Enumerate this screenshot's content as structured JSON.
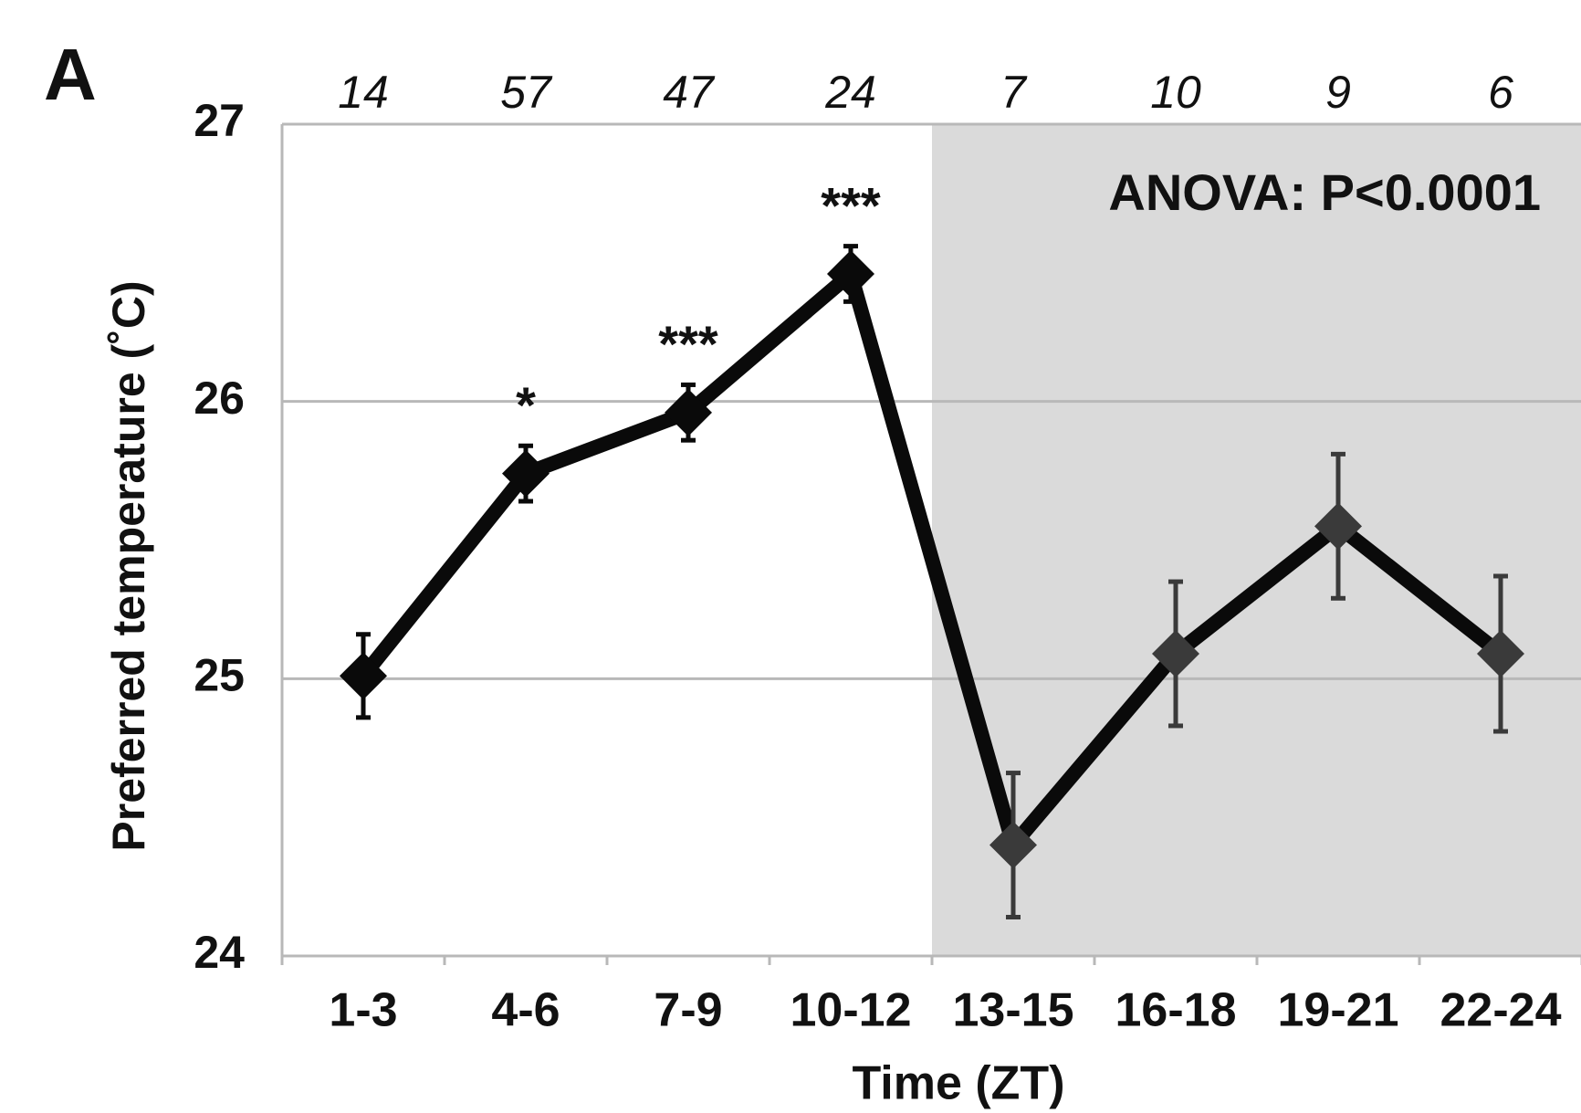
{
  "chart_data": {
    "type": "line",
    "panel_label": "A",
    "x_label": "Time (ZT)",
    "y_label": "Preferred temperature (˚C)",
    "annotation": "ANOVA: P<0.0001",
    "categories": [
      "1-3",
      "4-6",
      "7-9",
      "10-12",
      "13-15",
      "16-18",
      "19-21",
      "22-24"
    ],
    "n": [
      14,
      57,
      47,
      24,
      7,
      10,
      9,
      6
    ],
    "significance": [
      null,
      "*",
      "***",
      "***",
      null,
      null,
      null,
      null
    ],
    "series": [
      {
        "color": "#0a0a0a",
        "dark_color": "#3a3a3a",
        "values": [
          25.01,
          25.74,
          25.96,
          26.46,
          24.4,
          25.09,
          25.55,
          25.09
        ],
        "errors": [
          0.15,
          0.1,
          0.1,
          0.1,
          0.26,
          0.26,
          0.26,
          0.28
        ]
      }
    ],
    "shaded_from_index": 4,
    "shade_color": "#dadada",
    "ylim": [
      24,
      27
    ],
    "yticks": [
      24,
      25,
      26,
      27
    ],
    "grid": true
  }
}
